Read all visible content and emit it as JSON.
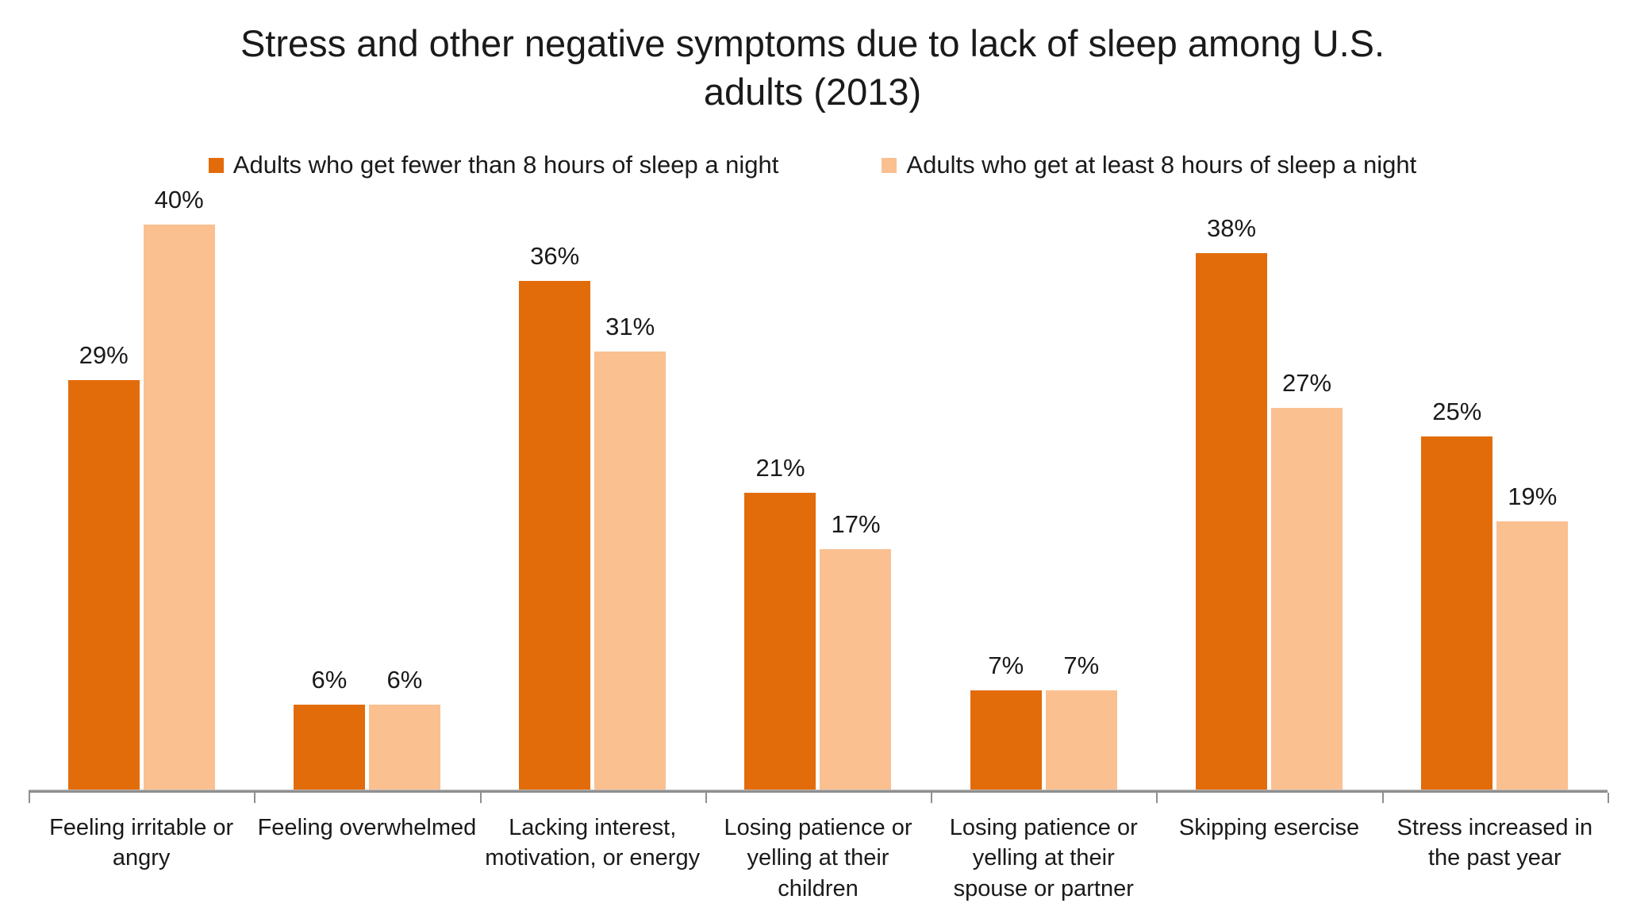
{
  "title": {
    "line1": "Stress and other negative symptoms due to lack of sleep among U.S.",
    "line2": "adults (2013)"
  },
  "colors": {
    "series_dark_orange": "#E26C0A",
    "series_light_orange": "#FAC090",
    "axis_gray": "#8F8F8F",
    "text": "#1A1A1A",
    "background": "#FFFFFF"
  },
  "chart_data": {
    "type": "bar",
    "title": "Stress and other negative symptoms due to lack of sleep among U.S. adults (2013)",
    "xlabel": "",
    "ylabel": "",
    "ylim": [
      0,
      40
    ],
    "grid": false,
    "legend_position": "top",
    "data_labels": true,
    "value_suffix": "%",
    "categories": [
      "Feeling irritable or angry",
      "Feeling overwhelmed",
      "Lacking interest, motivation, or energy",
      "Losing patience or yelling at their children",
      "Losing patience or yelling at their spouse or partner",
      "Skipping esercise",
      "Stress increased in the past year"
    ],
    "series": [
      {
        "name": "Adults who get fewer than 8 hours of sleep a night",
        "color": "#E26C0A",
        "values": [
          29,
          6,
          36,
          21,
          7,
          38,
          25
        ]
      },
      {
        "name": "Adults who get at least 8 hours of sleep a night",
        "color": "#FAC090",
        "values": [
          40,
          6,
          31,
          17,
          7,
          27,
          19
        ]
      }
    ]
  }
}
